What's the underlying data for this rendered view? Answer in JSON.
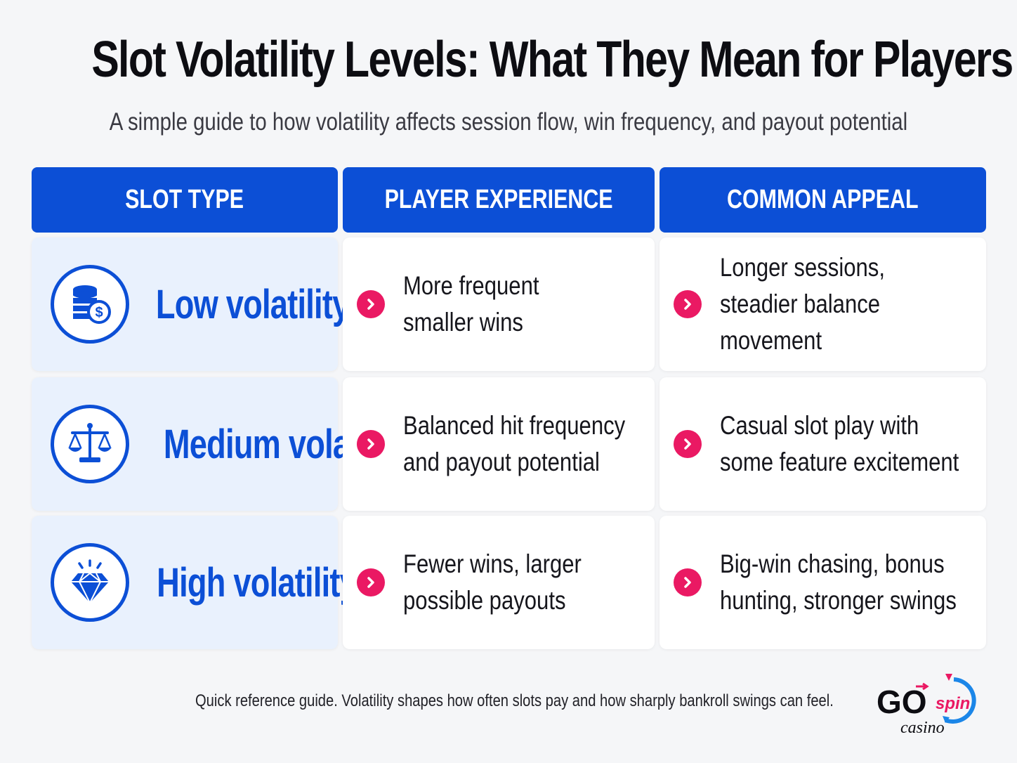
{
  "title": "Slot Volatility Levels: What They Mean for Players",
  "subtitle": "A simple guide to how volatility affects session flow, win frequency, and payout potential",
  "headers": [
    "SLOT TYPE",
    "PLAYER EXPERIENCE",
    "COMMON APPEAL"
  ],
  "rows": [
    {
      "type": "Low volatility",
      "icon": "coins-stack-icon",
      "experience": [
        "More frequent",
        "smaller wins"
      ],
      "appeal": [
        "Longer sessions,",
        "steadier balance movement"
      ]
    },
    {
      "type": "Medium volatility",
      "icon": "balance-scale-icon",
      "experience": [
        "Balanced hit frequency",
        "and payout potential"
      ],
      "appeal": [
        "Casual slot play with",
        "some feature excitement"
      ]
    },
    {
      "type": "High volatility",
      "icon": "diamond-icon",
      "experience": [
        "Fewer wins, larger",
        "possible payouts"
      ],
      "appeal": [
        "Big-win chasing, bonus",
        "hunting, stronger swings"
      ]
    }
  ],
  "footnote": "Quick reference guide. Volatility shapes how often slots pay and how sharply bankroll swings can feel.",
  "logo": {
    "go": "GO",
    "spin": "spin",
    "casino": "casino"
  },
  "colors": {
    "primary_blue": "#0c4fd6",
    "accent_pink": "#ea1963",
    "type_cell_bg": "#e9f1fd"
  }
}
